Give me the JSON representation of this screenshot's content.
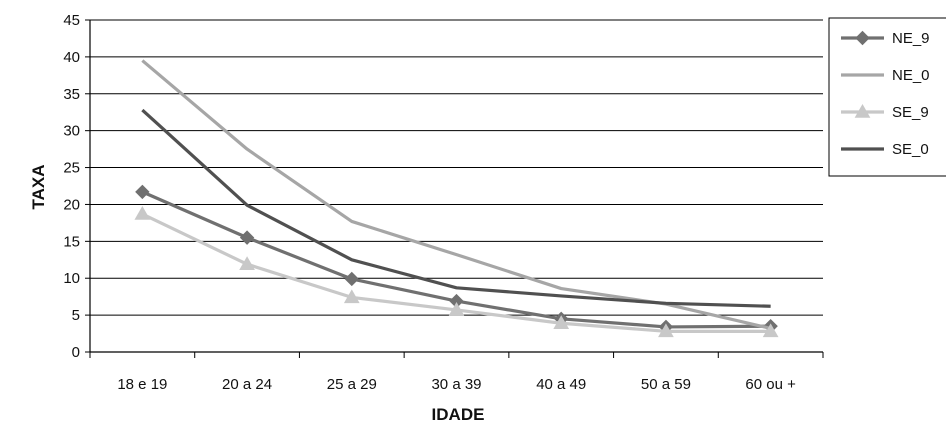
{
  "chart_data": {
    "type": "line",
    "title": "",
    "xlabel": "IDADE",
    "ylabel": "TAXA",
    "categories": [
      "18 e 19",
      "20 a 24",
      "25 a 29",
      "30 a 39",
      "40 a 49",
      "50 a 59",
      "60 ou +"
    ],
    "ylim": [
      0,
      45
    ],
    "yticks": [
      0,
      5,
      10,
      15,
      20,
      25,
      30,
      35,
      40,
      45
    ],
    "grid": true,
    "legend_position": "right",
    "series": [
      {
        "name": "NE_9",
        "values": [
          21.7,
          15.5,
          9.9,
          6.9,
          4.5,
          3.4,
          3.5
        ],
        "color": "#707070",
        "marker": "diamond"
      },
      {
        "name": "NE_0",
        "values": [
          39.5,
          27.5,
          17.7,
          13.2,
          8.6,
          6.5,
          3.2
        ],
        "color": "#a6a6a6",
        "marker": "none"
      },
      {
        "name": "SE_9",
        "values": [
          18.7,
          11.9,
          7.4,
          5.7,
          3.9,
          2.8,
          2.8
        ],
        "color": "#c8c8c8",
        "marker": "triangle"
      },
      {
        "name": "SE_0",
        "values": [
          32.8,
          19.9,
          12.5,
          8.7,
          7.6,
          6.6,
          6.2
        ],
        "color": "#505050",
        "marker": "none"
      }
    ]
  }
}
